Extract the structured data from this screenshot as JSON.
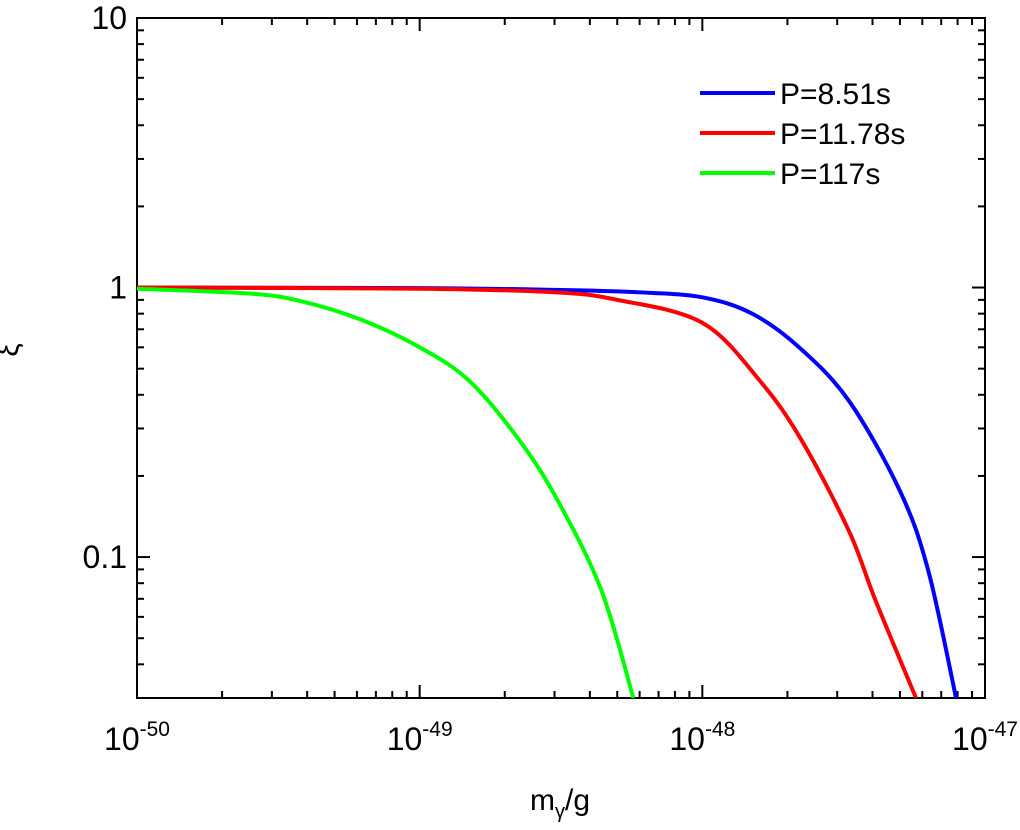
{
  "chart_data": {
    "type": "line",
    "xlabel": "mγ/g",
    "ylabel": "ξ",
    "xscale": "log",
    "yscale": "log",
    "xlim": [
      1e-50,
      1e-47
    ],
    "ylim": [
      0.03,
      10
    ],
    "xticks": [
      {
        "value": 1e-50,
        "label": "10-50"
      },
      {
        "value": 1e-49,
        "label": "10-49"
      },
      {
        "value": 1e-48,
        "label": "10-48"
      },
      {
        "value": 1e-47,
        "label": "10-47"
      }
    ],
    "yticks": [
      0.1,
      1,
      10
    ],
    "legend": "upper right",
    "series": [
      {
        "name": "P=8.51s",
        "color": "#0000ff",
        "x": [
          1e-50,
          1e-49,
          3e-49,
          6e-49,
          1e-48,
          1.5e-48,
          2.2e-48,
          3.3e-48,
          5e-48,
          6.3e-48,
          7.9e-48
        ],
        "values": [
          1.0,
          0.995,
          0.98,
          0.96,
          0.92,
          0.8,
          0.6,
          0.38,
          0.176,
          0.089,
          0.03
        ]
      },
      {
        "name": "P=11.78s",
        "color": "#ff0000",
        "x": [
          1e-50,
          1e-49,
          3e-49,
          5e-49,
          1e-48,
          1.6e-48,
          2.25e-48,
          3.3e-48,
          4.1e-48,
          5.7e-48
        ],
        "values": [
          1.0,
          0.99,
          0.96,
          0.9,
          0.74,
          0.45,
          0.27,
          0.125,
          0.069,
          0.03
        ]
      },
      {
        "name": "P=117s",
        "color": "#00ff00",
        "x": [
          1e-50,
          2.5e-50,
          3.8e-50,
          6.2e-50,
          1e-49,
          1.5e-49,
          2.26e-49,
          3.1e-49,
          4.4e-49,
          5.7e-49
        ],
        "values": [
          0.99,
          0.95,
          0.89,
          0.76,
          0.6,
          0.45,
          0.27,
          0.16,
          0.075,
          0.03
        ]
      }
    ]
  }
}
